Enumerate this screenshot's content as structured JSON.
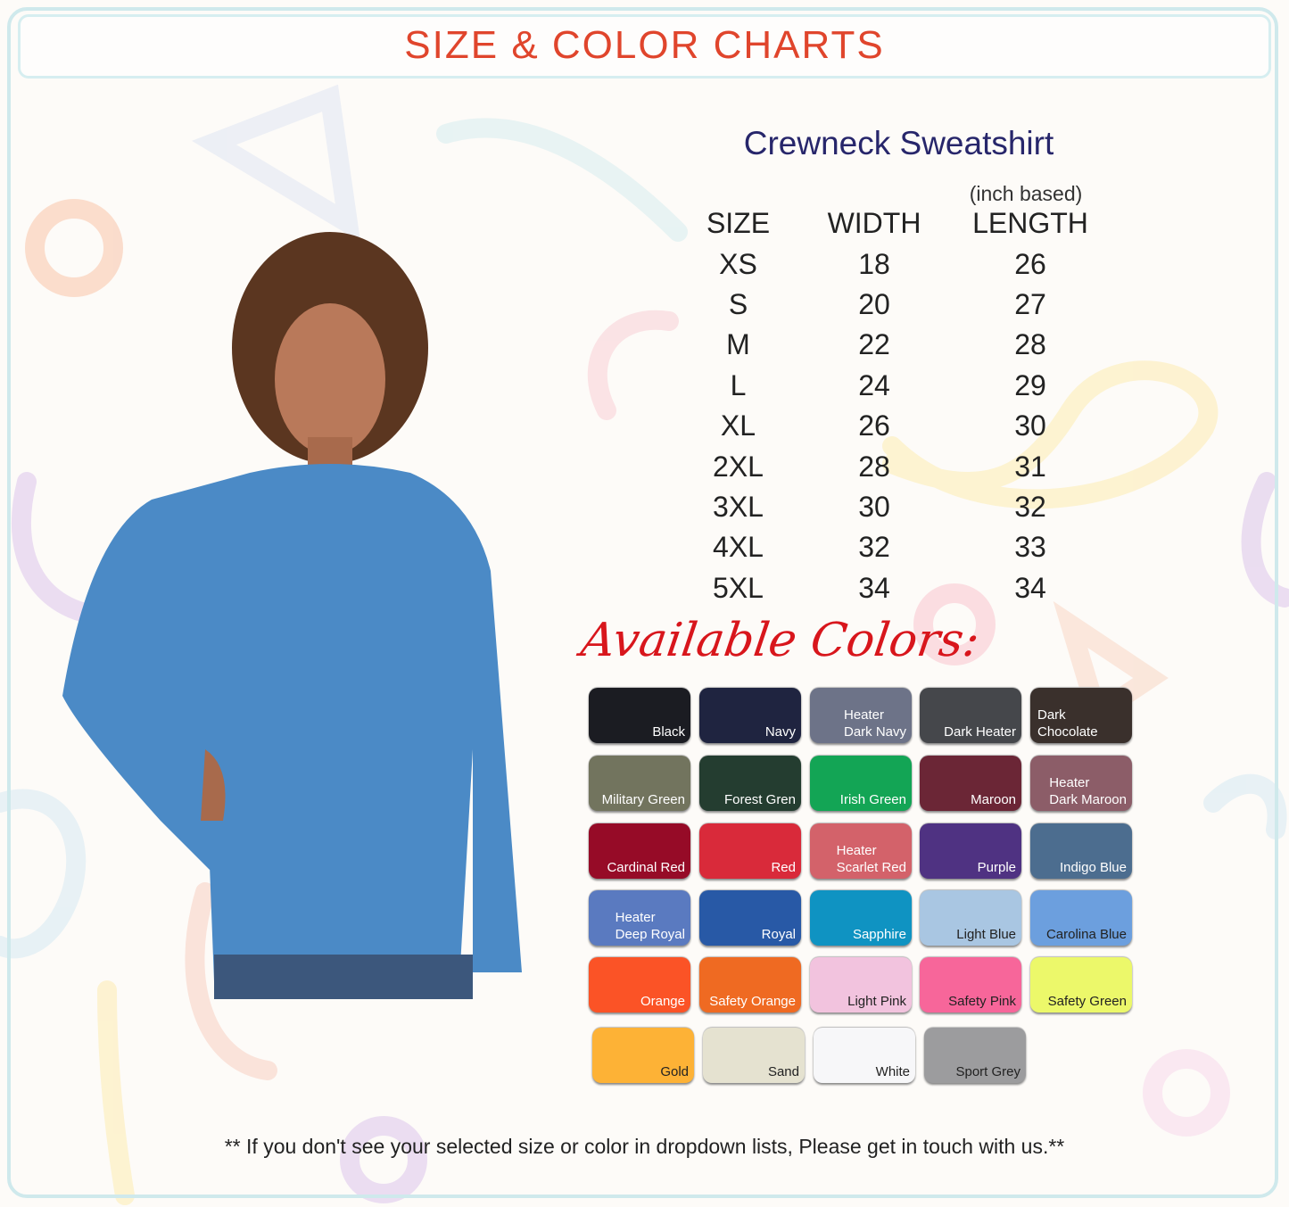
{
  "header": {
    "title": "SIZE & COLOR CHARTS"
  },
  "product": {
    "title": "Crewneck Sweatshirt",
    "unit_note": "(inch based)",
    "columns": [
      "SIZE",
      "WIDTH",
      "LENGTH"
    ],
    "rows": [
      [
        "XS",
        "18",
        "26"
      ],
      [
        "S",
        "20",
        "27"
      ],
      [
        "M",
        "22",
        "28"
      ],
      [
        "L",
        "24",
        "29"
      ],
      [
        "XL",
        "26",
        "30"
      ],
      [
        "2XL",
        "28",
        "31"
      ],
      [
        "3XL",
        "30",
        "32"
      ],
      [
        "4XL",
        "32",
        "33"
      ],
      [
        "5XL",
        "34",
        "34"
      ]
    ]
  },
  "colors": {
    "heading": "Available Colors:",
    "swatches": [
      {
        "label": "Black",
        "color": "#1b1c22"
      },
      {
        "label": "Navy",
        "color": "#1f2440"
      },
      {
        "label": "Heater\nDark Navy",
        "color": "#6d7388"
      },
      {
        "label": "Dark  Heater",
        "color": "#45474b"
      },
      {
        "label": "Dark  Chocolate",
        "color": "#3a302c"
      },
      {
        "label": "Military Green",
        "color": "#72745e"
      },
      {
        "label": "Forest Gren",
        "color": "#243d30"
      },
      {
        "label": "Irish Green",
        "color": "#13a555"
      },
      {
        "label": "Maroon",
        "color": "#6b2636"
      },
      {
        "label": "Heater\nDark Maroon",
        "color": "#8c5d68"
      },
      {
        "label": "Cardinal Red",
        "color": "#960b27"
      },
      {
        "label": "Red",
        "color": "#d92a3a"
      },
      {
        "label": "Heater\nScarlet Red",
        "color": "#d3626a"
      },
      {
        "label": "Purple",
        "color": "#4f3282"
      },
      {
        "label": "Indigo Blue",
        "color": "#4c6d8f"
      },
      {
        "label": "Heater\nDeep Royal",
        "color": "#5a7ac0"
      },
      {
        "label": "Royal",
        "color": "#2859a6"
      },
      {
        "label": "Sapphire",
        "color": "#0f93c2"
      },
      {
        "label": "Light Blue",
        "color": "#a9c6e2"
      },
      {
        "label": "Carolina Blue",
        "color": "#6c9fde"
      },
      {
        "label": "Orange",
        "color": "#fb5326"
      },
      {
        "label": "Safety Orange",
        "color": "#ef6a22"
      },
      {
        "label": "Light Pink",
        "color": "#f2c3de"
      },
      {
        "label": "Safety Pink",
        "color": "#f7669a"
      },
      {
        "label": "Safety Green",
        "color": "#ecf86a"
      },
      {
        "label": "Gold",
        "color": "#fdb236"
      },
      {
        "label": "Sand",
        "color": "#e5e2d0"
      },
      {
        "label": "White",
        "color": "#f7f7f9"
      },
      {
        "label": "Sport Grey",
        "color": "#9c9c9e"
      }
    ]
  },
  "footer": {
    "note": "** If you don't see your selected size or color in dropdown lists, Please get in touch with us.**"
  }
}
